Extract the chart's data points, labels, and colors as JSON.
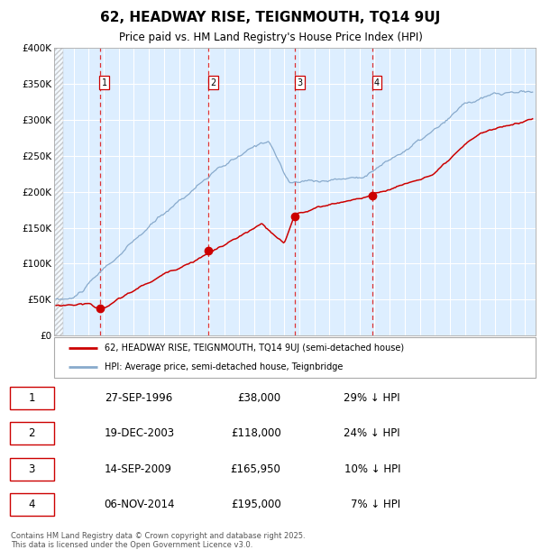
{
  "title": "62, HEADWAY RISE, TEIGNMOUTH, TQ14 9UJ",
  "subtitle": "Price paid vs. HM Land Registry's House Price Index (HPI)",
  "ylim": [
    0,
    400000
  ],
  "yticks": [
    0,
    50000,
    100000,
    150000,
    200000,
    250000,
    300000,
    350000,
    400000
  ],
  "ytick_labels": [
    "£0",
    "£50K",
    "£100K",
    "£150K",
    "£200K",
    "£250K",
    "£300K",
    "£350K",
    "£400K"
  ],
  "sale_dates_num": [
    1996.74,
    2003.97,
    2009.71,
    2014.85
  ],
  "sale_prices": [
    38000,
    118000,
    165950,
    195000
  ],
  "sale_labels": [
    "1",
    "2",
    "3",
    "4"
  ],
  "legend_line1": "62, HEADWAY RISE, TEIGNMOUTH, TQ14 9UJ (semi-detached house)",
  "legend_line2": "HPI: Average price, semi-detached house, Teignbridge",
  "table_rows": [
    [
      "1",
      "27-SEP-1996",
      "£38,000",
      "29% ↓ HPI"
    ],
    [
      "2",
      "19-DEC-2003",
      "£118,000",
      "24% ↓ HPI"
    ],
    [
      "3",
      "14-SEP-2009",
      "£165,950",
      "10% ↓ HPI"
    ],
    [
      "4",
      "06-NOV-2014",
      "£195,000",
      "7% ↓ HPI"
    ]
  ],
  "footer": "Contains HM Land Registry data © Crown copyright and database right 2025.\nThis data is licensed under the Open Government Licence v3.0.",
  "red_color": "#cc0000",
  "blue_color": "#88aacc",
  "background_color": "#ddeeff",
  "grid_color": "#ffffff",
  "vline_color": "#dd3333",
  "xstart": 1993.7,
  "xend": 2025.7,
  "hpi_seed": 10,
  "red_seed": 20
}
